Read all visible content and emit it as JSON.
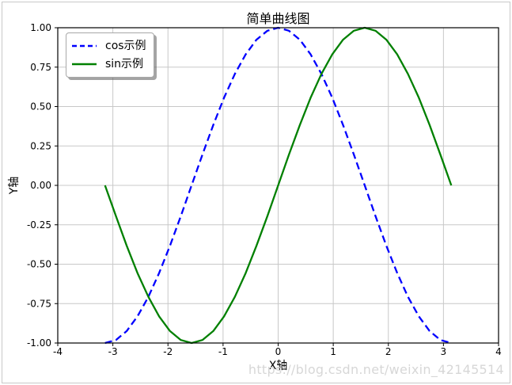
{
  "figure": {
    "watermark": "https://blog.csdn.net/weixin_42145514",
    "watermark_color": "#d7d7d7"
  },
  "chart_data": {
    "type": "line",
    "title": "简单曲线图",
    "xlabel": "X轴",
    "ylabel": "Y轴",
    "xlim": [
      -4,
      4
    ],
    "ylim": [
      -1,
      1
    ],
    "x_ticks": [
      -4,
      -3,
      -2,
      -1,
      0,
      1,
      2,
      3,
      4
    ],
    "x_tick_labels": [
      "-4",
      "-3",
      "-2",
      "-1",
      "0",
      "1",
      "2",
      "3",
      "4"
    ],
    "y_ticks": [
      -1,
      -0.75,
      -0.5,
      -0.25,
      0,
      0.25,
      0.5,
      0.75,
      1
    ],
    "y_tick_labels": [
      "-1.00",
      "-0.75",
      "-0.50",
      "-0.25",
      "0.00",
      "0.25",
      "0.50",
      "0.75",
      "1.00"
    ],
    "grid": true,
    "grid_color": "#c8c8c8",
    "spine_color": "#000000",
    "legend_position": "upper left",
    "x": [
      -3.142,
      -2.945,
      -2.749,
      -2.553,
      -2.356,
      -2.16,
      -1.963,
      -1.767,
      -1.571,
      -1.374,
      -1.178,
      -0.982,
      -0.785,
      -0.589,
      -0.393,
      -0.196,
      0,
      0.196,
      0.393,
      0.589,
      0.785,
      0.982,
      1.178,
      1.374,
      1.571,
      1.767,
      1.963,
      2.16,
      2.356,
      2.553,
      2.749,
      2.945,
      3.142
    ],
    "series": [
      {
        "id": "cos",
        "name": "cos示例",
        "color": "#0000ff",
        "style": "dashed",
        "y": [
          -1,
          -0.981,
          -0.924,
          -0.831,
          -0.707,
          -0.556,
          -0.383,
          -0.195,
          0,
          0.195,
          0.383,
          0.556,
          0.707,
          0.831,
          0.924,
          0.981,
          1,
          0.981,
          0.924,
          0.831,
          0.707,
          0.556,
          0.383,
          0.195,
          0,
          -0.195,
          -0.383,
          -0.556,
          -0.707,
          -0.831,
          -0.924,
          -0.981,
          -1
        ]
      },
      {
        "id": "sin",
        "name": "sin示例",
        "color": "#008000",
        "style": "solid",
        "y": [
          0,
          -0.195,
          -0.383,
          -0.556,
          -0.707,
          -0.831,
          -0.924,
          -0.981,
          -1,
          -0.981,
          -0.924,
          -0.831,
          -0.707,
          -0.556,
          -0.383,
          -0.195,
          0,
          0.195,
          0.383,
          0.556,
          0.707,
          0.831,
          0.924,
          0.981,
          1,
          0.981,
          0.924,
          0.831,
          0.707,
          0.556,
          0.383,
          0.195,
          0
        ]
      }
    ]
  }
}
